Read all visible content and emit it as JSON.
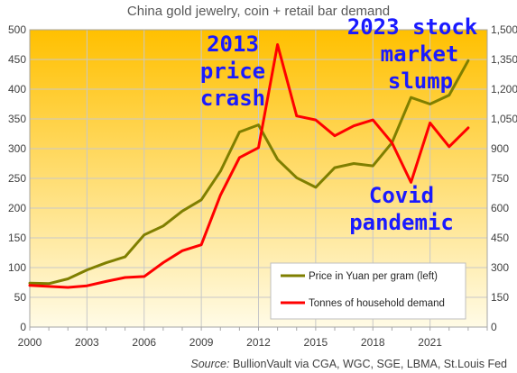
{
  "chart_data": {
    "type": "line",
    "title": "China gold jewelry, coin + retail bar demand",
    "x": [
      2000,
      2001,
      2002,
      2003,
      2004,
      2005,
      2006,
      2007,
      2008,
      2009,
      2010,
      2011,
      2012,
      2013,
      2014,
      2015,
      2016,
      2017,
      2018,
      2019,
      2020,
      2021,
      2022,
      2023
    ],
    "x_tick_labels": [
      "2000",
      "2003",
      "2006",
      "2009",
      "2012",
      "2015",
      "2018",
      "2021"
    ],
    "xlim": [
      2000,
      2024
    ],
    "y_left_ticks": [
      "0",
      "50",
      "100",
      "150",
      "200",
      "250",
      "300",
      "350",
      "400",
      "450",
      "500"
    ],
    "y_right_ticks": [
      "0",
      "150",
      "300",
      "450",
      "600",
      "750",
      "900",
      "1,050",
      "1,200",
      "1,350",
      "1,500"
    ],
    "ylim_left": [
      0,
      500
    ],
    "ylim_right": [
      0,
      1500
    ],
    "grid": true,
    "legend_position": "bottom-right",
    "series": [
      {
        "name": "Price in Yuan per gram (left)",
        "axis": "left",
        "color": "#7f7f00",
        "values": [
          74,
          73,
          81,
          96,
          108,
          118,
          155,
          170,
          195,
          214,
          262,
          328,
          340,
          282,
          251,
          235,
          268,
          275,
          271,
          310,
          386,
          375,
          390,
          448
        ]
      },
      {
        "name": "Tonnes of household demand",
        "axis": "right",
        "color": "#ff0000",
        "values": [
          210,
          205,
          200,
          208,
          230,
          250,
          255,
          325,
          385,
          415,
          665,
          855,
          905,
          1425,
          1065,
          1045,
          965,
          1015,
          1045,
          930,
          730,
          1030,
          910,
          1005
        ]
      }
    ],
    "annotations": [
      {
        "text": "2013"
      },
      {
        "text": "price"
      },
      {
        "text": "crash"
      },
      {
        "text": "2023 stock"
      },
      {
        "text": "market"
      },
      {
        "text": "slump"
      },
      {
        "text": "Covid"
      },
      {
        "text": "pandemic"
      }
    ],
    "source_label": "Source:",
    "source_text": " BullionVault via CGA, WGC, SGE, LBMA, St.Louis Fed"
  },
  "colors": {
    "plot_gradient_top": "#ffc000",
    "plot_gradient_bottom": "#fffbe6",
    "grid": "#c8c8c8",
    "annotation": "#1a1aff"
  }
}
